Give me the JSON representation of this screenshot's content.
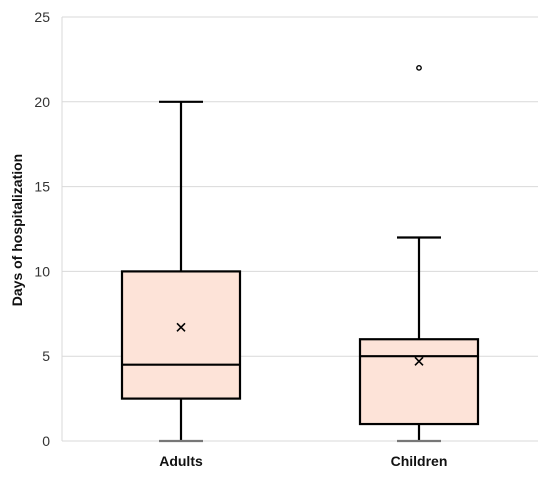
{
  "chart_data": {
    "type": "box",
    "title": "",
    "xlabel": "",
    "ylabel": "Days of hospitalization",
    "ylim": [
      0,
      25
    ],
    "yticks": [
      0,
      5,
      10,
      15,
      20,
      25
    ],
    "grid": true,
    "categories": [
      "Adults",
      "Children"
    ],
    "boxes": [
      {
        "category": "Adults",
        "min": 0,
        "q1": 2.5,
        "median": 4.5,
        "q3": 10,
        "max": 20,
        "mean": 6.7,
        "outliers": []
      },
      {
        "category": "Children",
        "min": 0,
        "q1": 1,
        "median": 5,
        "q3": 6,
        "max": 12,
        "mean": 4.7,
        "outliers": [
          22
        ]
      }
    ],
    "colors": {
      "box_fill": "#fde3d8",
      "stroke": "#000000",
      "grid": "#d9d9d9"
    }
  }
}
